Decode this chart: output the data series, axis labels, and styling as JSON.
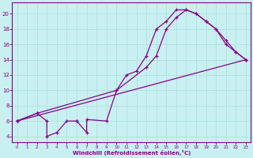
{
  "bg_color": "#c8f0f0",
  "line_color": "#880088",
  "grid_color": "#aadddd",
  "xlim": [
    -0.5,
    23.5
  ],
  "ylim": [
    3.2,
    21.5
  ],
  "xticks": [
    0,
    1,
    2,
    3,
    4,
    5,
    6,
    7,
    8,
    9,
    10,
    11,
    12,
    13,
    14,
    15,
    16,
    17,
    18,
    19,
    20,
    21,
    22,
    23
  ],
  "yticks": [
    4,
    6,
    8,
    10,
    12,
    14,
    16,
    18,
    20
  ],
  "xlabel": "Windchill (Refroidissement éolien,°C)",
  "line1_x": [
    0,
    2,
    3,
    3,
    4,
    5,
    6,
    6,
    7,
    7,
    9,
    10,
    11,
    12,
    13,
    14,
    15,
    16,
    17,
    18,
    19,
    20,
    21,
    22,
    23
  ],
  "line1_y": [
    6,
    7,
    6,
    4,
    4.5,
    6,
    6,
    6,
    4.5,
    6.2,
    6,
    10,
    12,
    12.5,
    14.5,
    18,
    19,
    20.5,
    20.5,
    20,
    19,
    18,
    16.5,
    15,
    14
  ],
  "line2_x": [
    0,
    2,
    10,
    13,
    14,
    15,
    16,
    17,
    18,
    19,
    20,
    21,
    22,
    23
  ],
  "line2_y": [
    6,
    7,
    10,
    13,
    14.5,
    18,
    19.5,
    20.5,
    20,
    19,
    18,
    16,
    15,
    14
  ],
  "line3_x": [
    0,
    23
  ],
  "line3_y": [
    6,
    14
  ]
}
